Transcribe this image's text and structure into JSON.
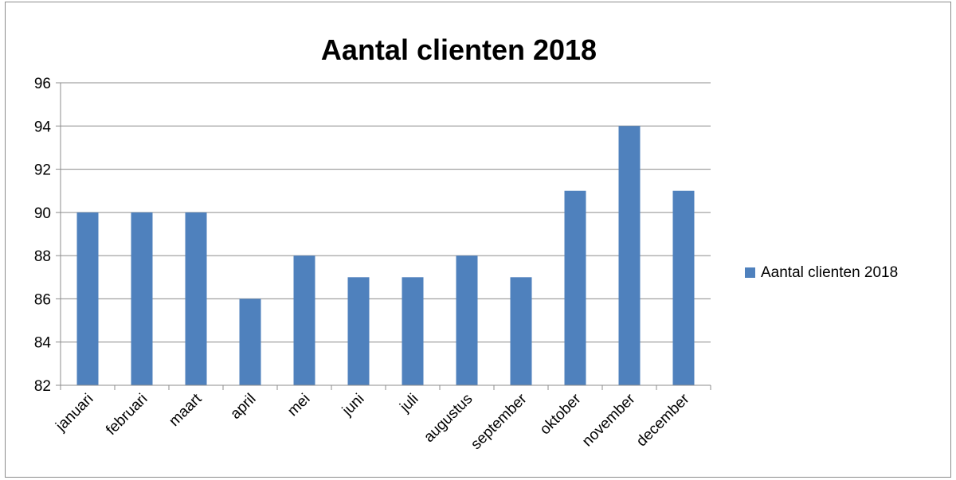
{
  "chart_data": {
    "type": "bar",
    "title": "Aantal clienten 2018",
    "xlabel": "",
    "ylabel": "",
    "categories": [
      "januari",
      "februari",
      "maart",
      "april",
      "mei",
      "juni",
      "juli",
      "augustus",
      "september",
      "oktober",
      "november",
      "december"
    ],
    "series": [
      {
        "name": "Aantal clienten 2018",
        "values": [
          90,
          90,
          90,
          86,
          88,
          87,
          87,
          88,
          87,
          91,
          94,
          91
        ],
        "color": "#4f81bd"
      }
    ],
    "ylim": [
      82,
      96
    ],
    "yticks": [
      "82",
      "84",
      "86",
      "88",
      "90",
      "92",
      "94",
      "96"
    ],
    "grid": true,
    "legend_position": "right"
  }
}
